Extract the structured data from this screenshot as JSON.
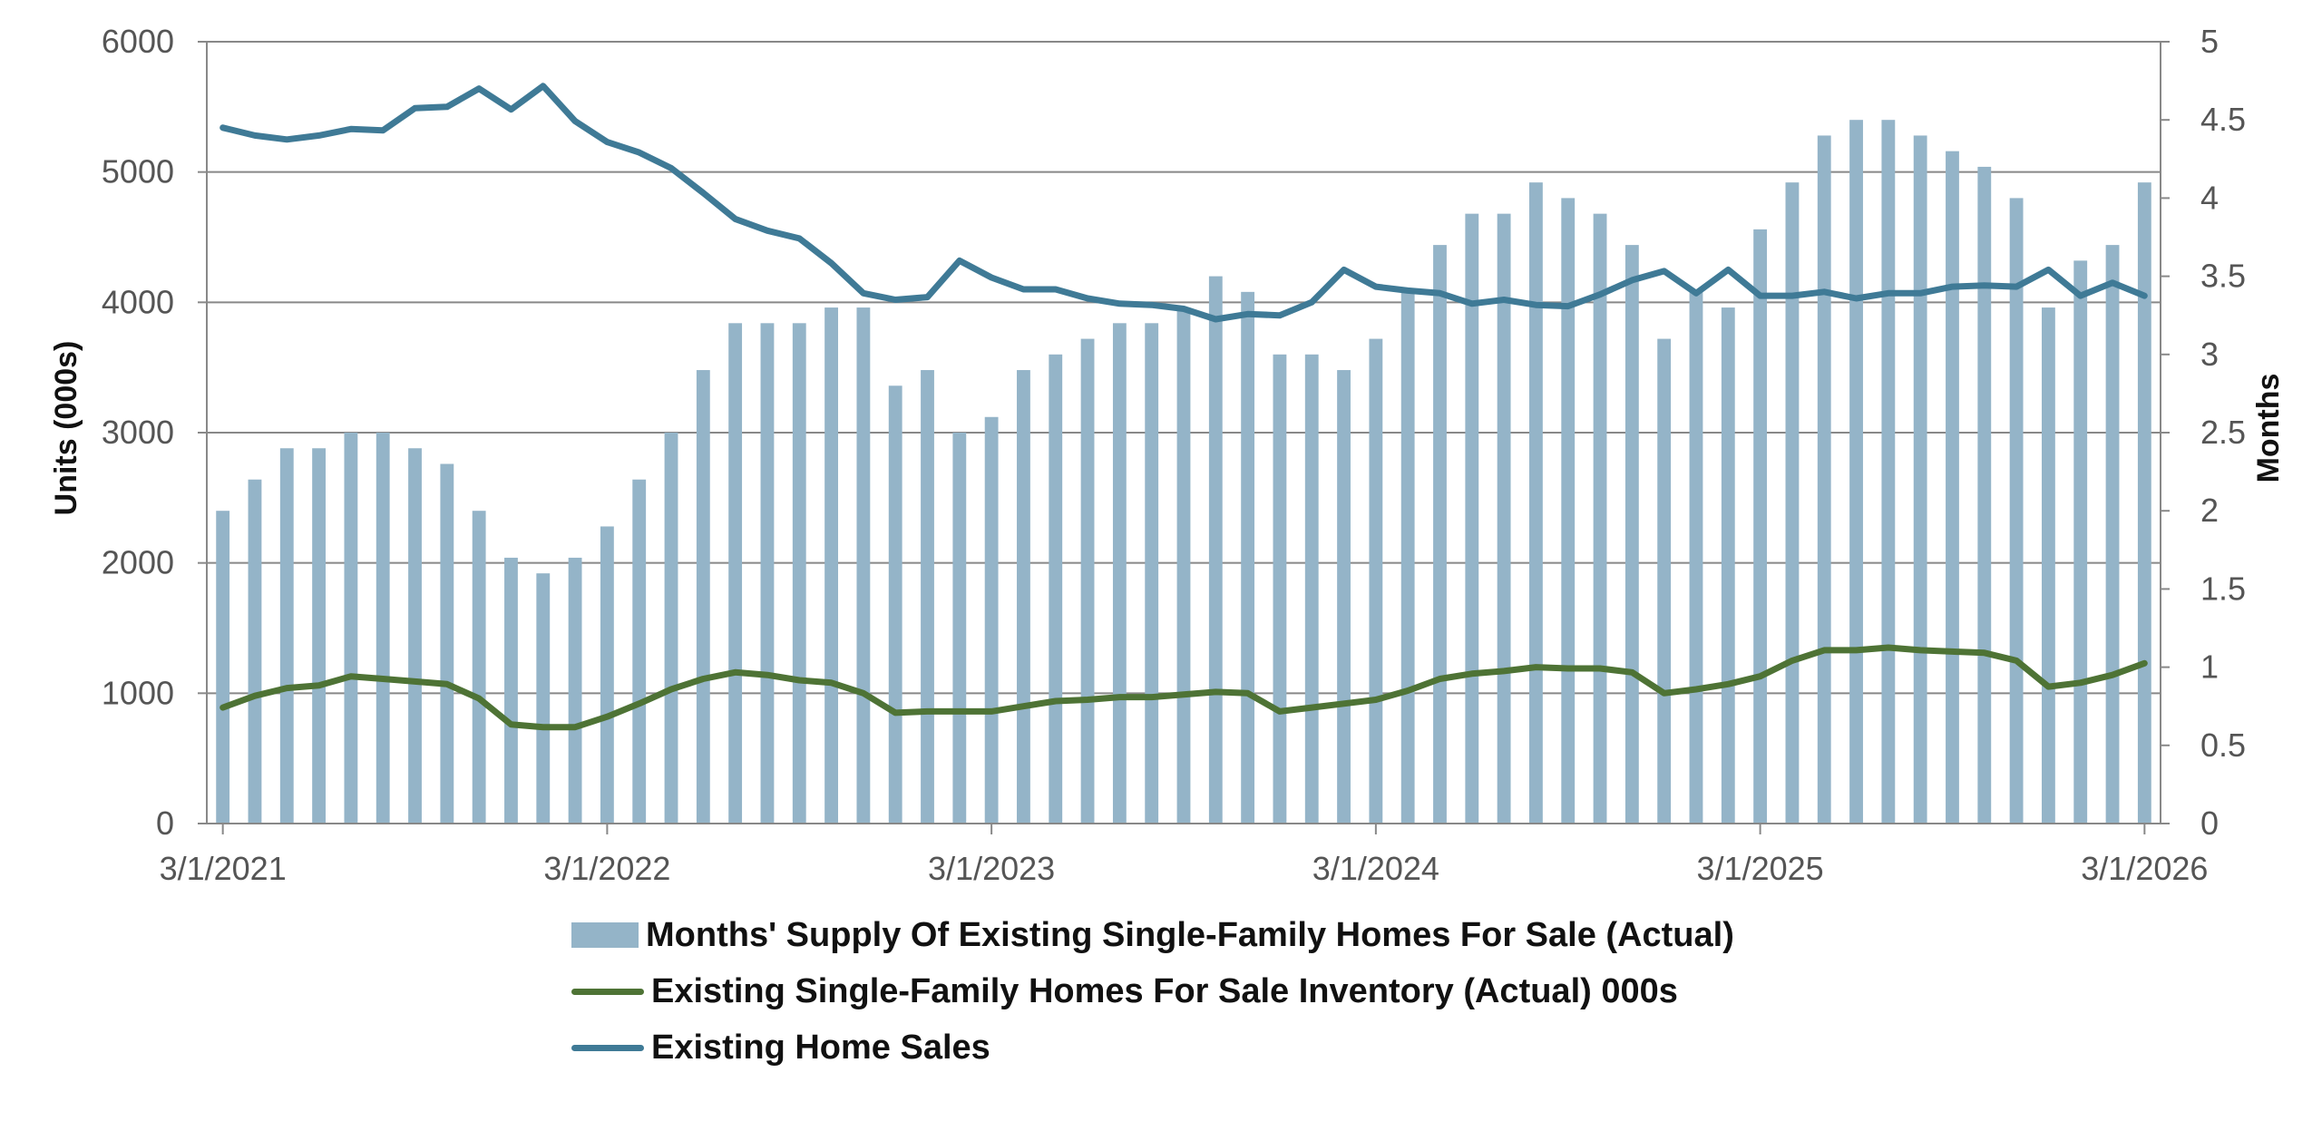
{
  "chart_data": {
    "type": "bar",
    "x_tick_labels": [
      "3/1/2021",
      "3/1/2022",
      "3/1/2023",
      "3/1/2024",
      "3/1/2025",
      "3/1/2026"
    ],
    "categories": [
      "3/1/2021",
      "4/1/2021",
      "5/1/2021",
      "6/1/2021",
      "7/1/2021",
      "8/1/2021",
      "9/1/2021",
      "10/1/2021",
      "11/1/2021",
      "12/1/2021",
      "1/1/2022",
      "2/1/2022",
      "3/1/2022",
      "4/1/2022",
      "5/1/2022",
      "6/1/2022",
      "7/1/2022",
      "8/1/2022",
      "9/1/2022",
      "10/1/2022",
      "11/1/2022",
      "12/1/2022",
      "1/1/2023",
      "2/1/2023",
      "3/1/2023",
      "4/1/2023",
      "5/1/2023",
      "6/1/2023",
      "7/1/2023",
      "8/1/2023",
      "9/1/2023",
      "10/1/2023",
      "11/1/2023",
      "12/1/2023",
      "1/1/2024",
      "2/1/2024",
      "3/1/2024",
      "4/1/2024",
      "5/1/2024",
      "6/1/2024",
      "7/1/2024",
      "8/1/2024",
      "9/1/2024",
      "10/1/2024",
      "11/1/2024",
      "12/1/2024",
      "1/1/2025",
      "2/1/2025",
      "3/1/2025",
      "4/1/2025",
      "5/1/2025",
      "6/1/2025",
      "7/1/2025",
      "8/1/2025",
      "9/1/2025",
      "10/1/2025",
      "11/1/2025",
      "12/1/2025",
      "1/1/2026",
      "2/1/2026",
      "3/1/2026"
    ],
    "ylabel_left": "Units (000s)",
    "ylabel_right": "Months",
    "ylim_left": [
      0,
      6000
    ],
    "ylim_right": [
      0,
      5
    ],
    "yticks_left": [
      "0",
      "1000",
      "2000",
      "3000",
      "4000",
      "5000",
      "6000"
    ],
    "yticks_right": [
      "0",
      "0.5",
      "1",
      "1.5",
      "2",
      "2.5",
      "3",
      "3.5",
      "4",
      "4.5",
      "5"
    ],
    "grid": true,
    "legend_position": "bottom",
    "series": [
      {
        "name": "Months' Supply Of Existing Single-Family Homes For Sale (Actual)",
        "type": "bar",
        "axis": "right",
        "color": "#94b4c8",
        "values": [
          2.0,
          2.2,
          2.4,
          2.4,
          2.5,
          2.5,
          2.4,
          2.3,
          2.0,
          1.7,
          1.6,
          1.7,
          1.9,
          2.2,
          2.5,
          2.9,
          3.2,
          3.2,
          3.2,
          3.3,
          3.3,
          2.8,
          2.9,
          2.5,
          2.6,
          2.9,
          3.0,
          3.1,
          3.2,
          3.2,
          3.3,
          3.5,
          3.4,
          3.0,
          3.0,
          2.9,
          3.1,
          3.4,
          3.7,
          3.9,
          3.9,
          4.1,
          4.0,
          3.9,
          3.7,
          3.1,
          3.4,
          3.3,
          3.8,
          4.1,
          4.4,
          4.5,
          4.5,
          4.4,
          4.3,
          4.2,
          4.0,
          3.3,
          3.6,
          3.7,
          4.1
        ]
      },
      {
        "name": "Existing Single-Family Homes For Sale Inventory (Actual) 000s",
        "type": "line",
        "axis": "left",
        "color": "#4e7335",
        "values": [
          890,
          980,
          1040,
          1060,
          1130,
          1110,
          1090,
          1070,
          960,
          760,
          740,
          740,
          820,
          920,
          1030,
          1110,
          1160,
          1140,
          1100,
          1080,
          1000,
          850,
          860,
          860,
          860,
          900,
          940,
          950,
          970,
          970,
          990,
          1010,
          1000,
          860,
          890,
          920,
          950,
          1020,
          1110,
          1150,
          1170,
          1200,
          1190,
          1190,
          1160,
          1000,
          1030,
          1070,
          1130,
          1250,
          1330,
          1330,
          1350,
          1330,
          1320,
          1310,
          1250,
          1050,
          1080,
          1140,
          1230
        ]
      },
      {
        "name": "Existing Home Sales",
        "type": "line",
        "axis": "left",
        "color": "#3f7a96",
        "values": [
          5340,
          5280,
          5250,
          5280,
          5330,
          5320,
          5490,
          5500,
          5640,
          5480,
          5660,
          5390,
          5230,
          5150,
          5030,
          4840,
          4640,
          4550,
          4490,
          4300,
          4070,
          4020,
          4040,
          4320,
          4190,
          4100,
          4100,
          4030,
          3990,
          3980,
          3950,
          3870,
          3910,
          3900,
          4000,
          4250,
          4120,
          4090,
          4070,
          3990,
          4020,
          3980,
          3970,
          4060,
          4170,
          4240,
          4070,
          4250,
          4050,
          4050,
          4080,
          4030,
          4070,
          4070,
          4120,
          4130,
          4120,
          4250,
          4050,
          4150,
          4050
        ]
      }
    ]
  }
}
